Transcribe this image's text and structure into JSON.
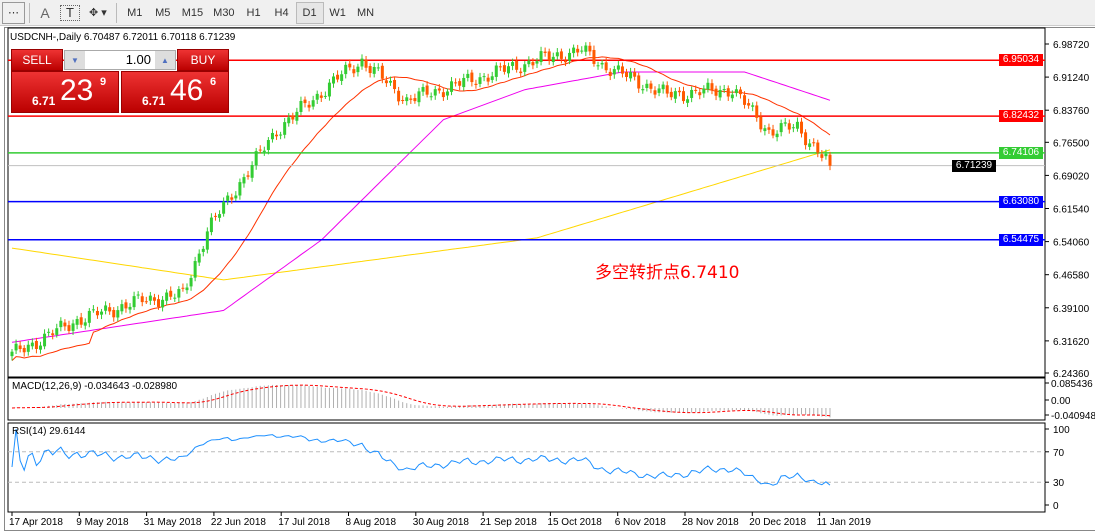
{
  "toolbar": {
    "icons": [
      "crosshair-grid-icon",
      "text-icon",
      "text-label-icon",
      "shapes-icon"
    ],
    "text_A": "A",
    "text_T": "T",
    "timeframes": [
      "M1",
      "M5",
      "M15",
      "M30",
      "H1",
      "H4",
      "D1",
      "W1",
      "MN"
    ],
    "active": "D1"
  },
  "chart": {
    "symbol_line": "USDCNH-,Daily  6.70487 6.72011 6.70118 6.71239",
    "sell_label": "SELL",
    "buy_label": "BUY",
    "lot": "1.00",
    "sell_price": {
      "prefix": "6.71",
      "big": "23",
      "sup": "9"
    },
    "buy_price": {
      "prefix": "6.71",
      "big": "46",
      "sup": "6"
    },
    "annotation": "多空转折点6.7410"
  },
  "chart_data": {
    "type": "candlestick",
    "symbol": "USDCNH-",
    "timeframe": "Daily",
    "ylim": [
      6.2436,
      6.9872
    ],
    "yticks": [
      "6.98720",
      "6.91240",
      "6.83760",
      "6.76500",
      "6.69020",
      "6.61540",
      "6.54060",
      "6.46580",
      "6.39100",
      "6.31620",
      "6.24360"
    ],
    "xticks": [
      "17 Apr 2018",
      "9 May 2018",
      "31 May 2018",
      "22 Jun 2018",
      "17 Jul 2018",
      "8 Aug 2018",
      "30 Aug 2018",
      "21 Sep 2018",
      "15 Oct 2018",
      "6 Nov 2018",
      "28 Nov 2018",
      "20 Dec 2018",
      "11 Jan 2019"
    ],
    "close_keypoints": [
      [
        "2018-04-17",
        6.285
      ],
      [
        "2018-05-09",
        6.363
      ],
      [
        "2018-05-31",
        6.408
      ],
      [
        "2018-06-14",
        6.42
      ],
      [
        "2018-06-22",
        6.566
      ],
      [
        "2018-07-03",
        6.66
      ],
      [
        "2018-07-17",
        6.792
      ],
      [
        "2018-08-08",
        6.917
      ],
      [
        "2018-08-15",
        6.95
      ],
      [
        "2018-08-30",
        6.86
      ],
      [
        "2018-09-21",
        6.906
      ],
      [
        "2018-10-15",
        6.951
      ],
      [
        "2018-10-30",
        6.973
      ],
      [
        "2018-11-06",
        6.94
      ],
      [
        "2018-11-28",
        6.872
      ],
      [
        "2018-12-20",
        6.885
      ],
      [
        "2019-01-02",
        6.79
      ],
      [
        "2019-01-11",
        6.8
      ],
      [
        "2019-01-18",
        6.746
      ],
      [
        "2019-01-23",
        6.712
      ]
    ],
    "ma_yellow": [
      [
        "2018-04-17",
        6.526
      ],
      [
        "2018-06-28",
        6.454
      ],
      [
        "2018-10-15",
        6.549
      ],
      [
        "2019-01-23",
        6.748
      ]
    ],
    "ma_magenta": [
      [
        "2018-04-17",
        6.313
      ],
      [
        "2018-06-28",
        6.385
      ],
      [
        "2018-08-01",
        6.544
      ],
      [
        "2018-09-12",
        6.816
      ],
      [
        "2018-10-10",
        6.884
      ],
      [
        "2018-11-13",
        6.924
      ],
      [
        "2018-12-25",
        6.924
      ],
      [
        "2019-01-23",
        6.86
      ]
    ],
    "hlines": [
      {
        "value": "6.95034",
        "color": "#ff0000"
      },
      {
        "value": "6.82432",
        "color": "#ff0000"
      },
      {
        "value": "6.74106",
        "color": "#33cc33"
      },
      {
        "value": "6.71239",
        "color": "#000000"
      },
      {
        "value": "6.63080",
        "color": "#0000ff"
      },
      {
        "value": "6.54475",
        "color": "#0000ff"
      }
    ],
    "colors": {
      "bull": "#33cc33",
      "bear": "#ff5a00",
      "ma_fast": "#ff3300",
      "ma_mid": "#ee00ee",
      "ma_slow": "#ffd700"
    },
    "macd": {
      "label": "MACD(12,26,9) -0.034643 -0.028980",
      "ticks": [
        "0.085436",
        "0.00",
        "-0.040948"
      ],
      "range": [
        -0.040948,
        0.085436
      ]
    },
    "rsi": {
      "label": "RSI(14) 29.6144",
      "ticks": [
        "100",
        "70",
        "30",
        "0"
      ],
      "levels": [
        70,
        30
      ]
    }
  }
}
